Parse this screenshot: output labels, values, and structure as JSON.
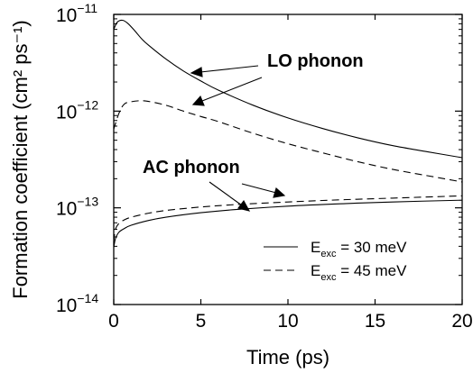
{
  "chart_data": {
    "type": "line",
    "xlabel": "Time (ps)",
    "ylabel": "Formation coefficient (cm² ps⁻¹)",
    "xlim": [
      0,
      20
    ],
    "ylim": [
      1e-14,
      1e-11
    ],
    "yscale": "log",
    "grid": false,
    "x_ticks": [
      0,
      5,
      10,
      15,
      20
    ],
    "x_tick_labels": [
      "0",
      "5",
      "10",
      "15",
      "20"
    ],
    "y_ticks": [
      1e-14,
      1e-13,
      1e-12,
      1e-11
    ],
    "y_tick_labels": [
      {
        "base": "10",
        "exp": "−14"
      },
      {
        "base": "10",
        "exp": "−13"
      },
      {
        "base": "10",
        "exp": "−12"
      },
      {
        "base": "10",
        "exp": "−11"
      }
    ],
    "legend": {
      "placement": "bottom-right",
      "entries": [
        {
          "main": "E",
          "sub": "exc",
          "rest": " = 30 meV",
          "style": "solid"
        },
        {
          "main": "E",
          "sub": "exc",
          "rest": " = 45 meV",
          "style": "dashed"
        }
      ]
    },
    "annotations": [
      {
        "text": "LO phonon",
        "points_to": [
          "lo-30",
          "lo-45"
        ]
      },
      {
        "text": "AC phonon",
        "points_to": [
          "ac-30",
          "ac-45"
        ]
      }
    ],
    "series": [
      {
        "id": "lo-30",
        "style": "solid",
        "x": [
          0,
          0.2,
          0.5,
          0.8,
          1.2,
          1.6,
          2,
          3,
          4,
          5,
          6,
          8,
          10,
          12,
          14,
          16,
          18,
          20
        ],
        "y": [
          7e-12,
          8.3e-12,
          8.7e-12,
          8.1e-12,
          6.8e-12,
          5.6e-12,
          4.8e-12,
          3.45e-12,
          2.6e-12,
          2.05e-12,
          1.65e-12,
          1.15e-12,
          8.5e-13,
          6.6e-13,
          5.3e-13,
          4.4e-13,
          3.8e-13,
          3.3e-13
        ]
      },
      {
        "id": "lo-45",
        "style": "dashed",
        "x": [
          0,
          0.3,
          0.6,
          1,
          1.5,
          2,
          3,
          4,
          5,
          6,
          8,
          10,
          12,
          14,
          16,
          18,
          20
        ],
        "y": [
          6.5e-13,
          9.5e-13,
          1.18e-12,
          1.25e-12,
          1.28e-12,
          1.26e-12,
          1.15e-12,
          1e-12,
          8.8e-13,
          7.8e-13,
          5.9e-13,
          4.6e-13,
          3.7e-13,
          3e-13,
          2.5e-13,
          2.15e-13,
          1.85e-13
        ]
      },
      {
        "id": "ac-30",
        "style": "solid",
        "x": [
          0,
          0.1,
          0.3,
          0.6,
          1,
          2,
          3,
          5,
          7,
          10,
          13,
          16,
          20
        ],
        "y": [
          3.9e-14,
          4.8e-14,
          5.6e-14,
          6.1e-14,
          6.6e-14,
          7.4e-14,
          8e-14,
          8.9e-14,
          9.6e-14,
          1.04e-13,
          1.1e-13,
          1.15e-13,
          1.2e-13
        ]
      },
      {
        "id": "ac-45",
        "style": "dashed",
        "x": [
          0,
          0.1,
          0.3,
          0.6,
          1,
          2,
          3,
          5,
          7,
          10,
          13,
          16,
          20
        ],
        "y": [
          4.5e-14,
          6e-14,
          6.9e-14,
          7.5e-14,
          8e-14,
          8.8e-14,
          9.4e-14,
          1.02e-13,
          1.08e-13,
          1.15e-13,
          1.21e-13,
          1.26e-13,
          1.33e-13
        ]
      }
    ]
  }
}
